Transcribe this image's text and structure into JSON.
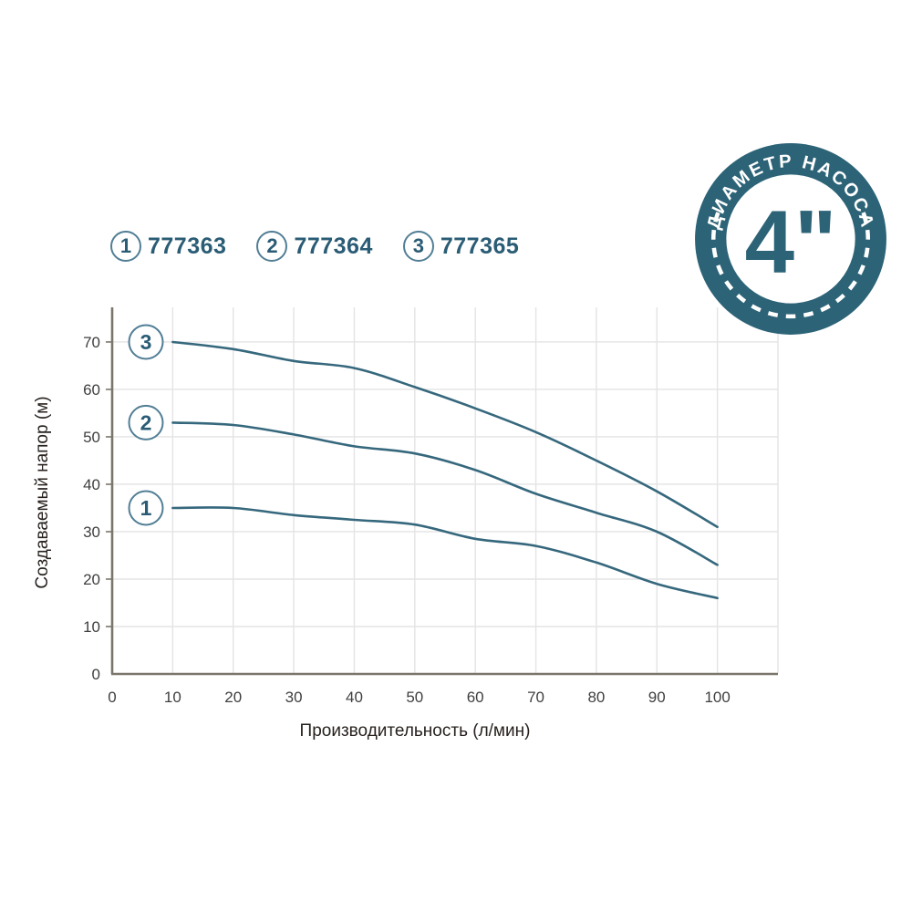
{
  "page": {
    "background": "#ffffff"
  },
  "colors": {
    "accent": "#36687d",
    "accent_text": "#2a5c75",
    "ring": "#517e95",
    "badge": "#2c6377",
    "grid": "#e4e4e4",
    "axis": "#7b766c",
    "tick": "#3f3f3f",
    "title": "#27211e"
  },
  "legend": {
    "items": [
      {
        "index": "1",
        "code": "777363"
      },
      {
        "index": "2",
        "code": "777364"
      },
      {
        "index": "3",
        "code": "777365"
      }
    ]
  },
  "badge": {
    "ring_text": "ДИАМЕТР НАСОСА",
    "center_text": "4\"",
    "color": "#2c6377"
  },
  "chart_data": {
    "type": "line",
    "title": "",
    "xlabel": "Производительность (л/мин)",
    "ylabel": "Создаваемый напор (м)",
    "x_ticks": [
      0,
      10,
      20,
      30,
      40,
      50,
      60,
      70,
      80,
      90,
      100
    ],
    "y_ticks": [
      0,
      10,
      20,
      30,
      40,
      50,
      60,
      70
    ],
    "xlim": [
      0,
      110
    ],
    "ylim": [
      0,
      77
    ],
    "grid": true,
    "legend_position": "top",
    "line_color": "#36687d",
    "x": [
      10,
      20,
      30,
      40,
      50,
      60,
      70,
      80,
      90,
      100
    ],
    "series": [
      {
        "label": "1",
        "code": "777363",
        "values": [
          35,
          35,
          33.5,
          32.5,
          31.5,
          28.5,
          27,
          23.5,
          19,
          16
        ]
      },
      {
        "label": "2",
        "code": "777364",
        "values": [
          53,
          52.5,
          50.5,
          48,
          46.5,
          43,
          38,
          34,
          30,
          23
        ]
      },
      {
        "label": "3",
        "code": "777365",
        "values": [
          70,
          68.5,
          66,
          64.5,
          60.5,
          56,
          51,
          45,
          38.5,
          31
        ]
      }
    ]
  }
}
